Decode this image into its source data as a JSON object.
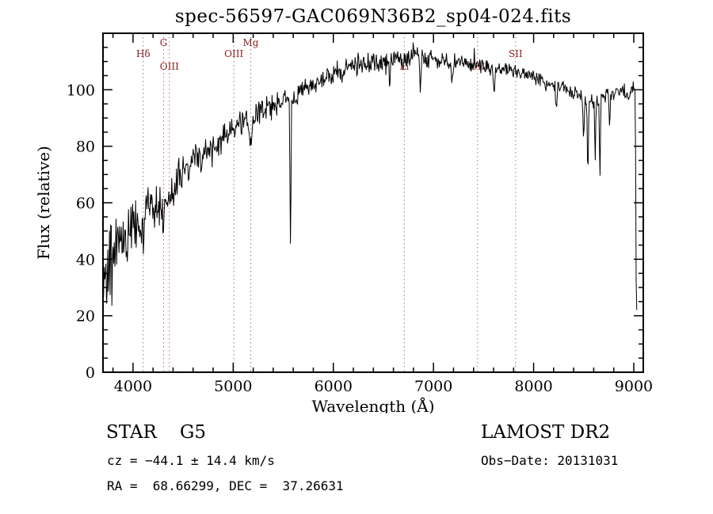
{
  "title": "spec-56597-GAC069N36B2_sp04-024.fits",
  "footer": {
    "class_label": "STAR    G5",
    "survey": "LAMOST DR2",
    "cz": "cz = −44.1 ± 14.4 km/s",
    "obs_date": "Obs−Date: 20131031",
    "radec": "RA =  68.66299, DEC =  37.26631"
  },
  "colors": {
    "spectrum": "#000000",
    "axis": "#000000",
    "marker_line": "#b06a6a",
    "marker_label": "#8b2020",
    "background": "#ffffff"
  },
  "chart_data": {
    "type": "line",
    "title": "spec-56597-GAC069N36B2_sp04-024.fits",
    "xlabel": "Wavelength (Å)",
    "ylabel": "Flux (relative)",
    "xlim": [
      3700,
      9095
    ],
    "ylim": [
      0,
      120
    ],
    "xticks": [
      4000,
      5000,
      6000,
      7000,
      8000,
      9000
    ],
    "yticks": [
      0,
      20,
      40,
      60,
      80,
      100
    ],
    "x_minor_step": 200,
    "y_minor_step": 5,
    "grid": false,
    "legend": "none",
    "spectral_lines": [
      {
        "label": "Hδ",
        "wavelength": 4102,
        "row": 1
      },
      {
        "label": "G",
        "wavelength": 4305,
        "row": 0
      },
      {
        "label": "OIII",
        "wavelength": 4363,
        "row": 2
      },
      {
        "label": "OIII",
        "wavelength": 5007,
        "row": 1
      },
      {
        "label": "Mg",
        "wavelength": 5175,
        "row": 0
      },
      {
        "label": "Li",
        "wavelength": 6708,
        "row": 2
      },
      {
        "label": "OII",
        "wavelength": 7440,
        "row": 2
      },
      {
        "label": "SII",
        "wavelength": 7820,
        "row": 1
      }
    ],
    "continuum": [
      [
        3700,
        34
      ],
      [
        3750,
        42
      ],
      [
        3800,
        38
      ],
      [
        3850,
        46
      ],
      [
        3900,
        50
      ],
      [
        3950,
        47
      ],
      [
        4000,
        52
      ],
      [
        4050,
        54
      ],
      [
        4100,
        53
      ],
      [
        4150,
        57
      ],
      [
        4200,
        58
      ],
      [
        4250,
        59
      ],
      [
        4300,
        58
      ],
      [
        4350,
        60
      ],
      [
        4400,
        64
      ],
      [
        4500,
        70
      ],
      [
        4600,
        74
      ],
      [
        4700,
        77
      ],
      [
        4800,
        80
      ],
      [
        4900,
        84
      ],
      [
        5000,
        86
      ],
      [
        5100,
        89
      ],
      [
        5175,
        87
      ],
      [
        5250,
        91
      ],
      [
        5350,
        94
      ],
      [
        5450,
        96
      ],
      [
        5550,
        97
      ],
      [
        5650,
        99
      ],
      [
        5750,
        101
      ],
      [
        5850,
        103
      ],
      [
        5950,
        105
      ],
      [
        6050,
        106
      ],
      [
        6150,
        108
      ],
      [
        6250,
        109
      ],
      [
        6350,
        110
      ],
      [
        6450,
        110
      ],
      [
        6550,
        110
      ],
      [
        6650,
        111
      ],
      [
        6750,
        111
      ],
      [
        6850,
        112
      ],
      [
        6950,
        111
      ],
      [
        7050,
        111
      ],
      [
        7150,
        110
      ],
      [
        7250,
        110
      ],
      [
        7350,
        109
      ],
      [
        7450,
        109
      ],
      [
        7550,
        108
      ],
      [
        7650,
        108
      ],
      [
        7750,
        107
      ],
      [
        7850,
        106
      ],
      [
        7950,
        105
      ],
      [
        8050,
        104
      ],
      [
        8150,
        102
      ],
      [
        8250,
        101
      ],
      [
        8350,
        100
      ],
      [
        8450,
        98
      ],
      [
        8550,
        96
      ],
      [
        8650,
        97
      ],
      [
        8750,
        99
      ],
      [
        8850,
        100
      ],
      [
        8950,
        97
      ],
      [
        9000,
        101
      ],
      [
        9030,
        100
      ]
    ],
    "noise_envelope": [
      [
        3700,
        16
      ],
      [
        3800,
        15
      ],
      [
        3900,
        12
      ],
      [
        4000,
        10
      ],
      [
        4200,
        8
      ],
      [
        4400,
        7
      ],
      [
        4700,
        6
      ],
      [
        5000,
        5
      ],
      [
        5500,
        4.5
      ],
      [
        6000,
        4
      ],
      [
        6500,
        3.5
      ],
      [
        7000,
        3
      ],
      [
        7500,
        2.5
      ],
      [
        8000,
        2.5
      ],
      [
        8500,
        3
      ],
      [
        9000,
        3
      ],
      [
        9030,
        4
      ]
    ],
    "absorption_features": [
      {
        "wavelength": 4102,
        "depth": 5,
        "width": 5
      },
      {
        "wavelength": 4305,
        "depth": 6,
        "width": 8
      },
      {
        "wavelength": 4861,
        "depth": 6,
        "width": 5
      },
      {
        "wavelength": 5175,
        "depth": 7,
        "width": 10
      },
      {
        "wavelength": 5572,
        "depth": 54,
        "width": 5
      },
      {
        "wavelength": 6563,
        "depth": 9,
        "width": 5
      },
      {
        "wavelength": 6870,
        "depth": 10,
        "width": 7
      },
      {
        "wavelength": 7186,
        "depth": 7,
        "width": 8
      },
      {
        "wavelength": 7605,
        "depth": 9,
        "width": 9
      },
      {
        "wavelength": 8227,
        "depth": 8,
        "width": 6
      },
      {
        "wavelength": 8498,
        "depth": 16,
        "width": 5
      },
      {
        "wavelength": 8542,
        "depth": 28,
        "width": 5
      },
      {
        "wavelength": 8615,
        "depth": 22,
        "width": 5
      },
      {
        "wavelength": 8662,
        "depth": 30,
        "width": 5
      },
      {
        "wavelength": 8760,
        "depth": 12,
        "width": 5
      },
      {
        "wavelength": 9028,
        "depth": 85,
        "width": 6
      }
    ],
    "noise_seed": 42,
    "samples": 900,
    "spike_prob": 0.02,
    "spike_scale": 2.2
  }
}
